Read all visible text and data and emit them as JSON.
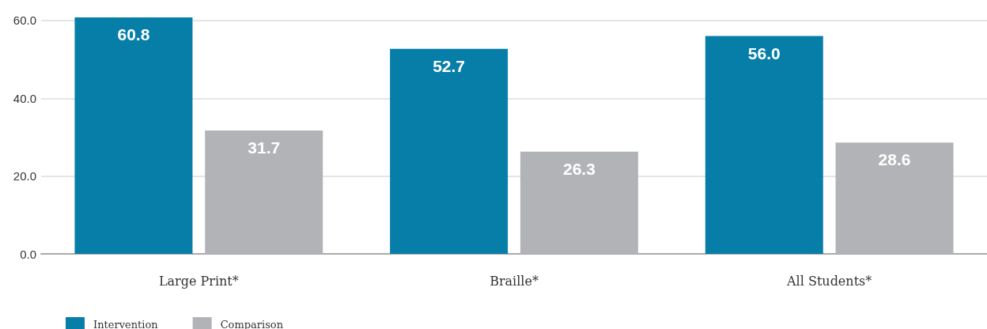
{
  "chart_data": {
    "type": "bar",
    "categories": [
      "Large Print*",
      "Braille*",
      "All Students*"
    ],
    "series": [
      {
        "name": "Intervention",
        "color": "#077ea8",
        "values": [
          60.8,
          52.7,
          56.0
        ],
        "value_labels": [
          "60.8",
          "52.7",
          "56.0"
        ]
      },
      {
        "name": "Comparison",
        "color": "#b2b3b7",
        "values": [
          31.7,
          26.3,
          28.6
        ],
        "value_labels": [
          "31.7",
          "26.3",
          "28.6"
        ]
      }
    ],
    "ylim": [
      0,
      61
    ],
    "yticks": [
      {
        "value": 0,
        "label": "0.0"
      },
      {
        "value": 20,
        "label": "20.0"
      },
      {
        "value": 40,
        "label": "40.0"
      },
      {
        "value": 60,
        "label": "60.0"
      }
    ],
    "grid": "y",
    "legend": "bottom left"
  }
}
